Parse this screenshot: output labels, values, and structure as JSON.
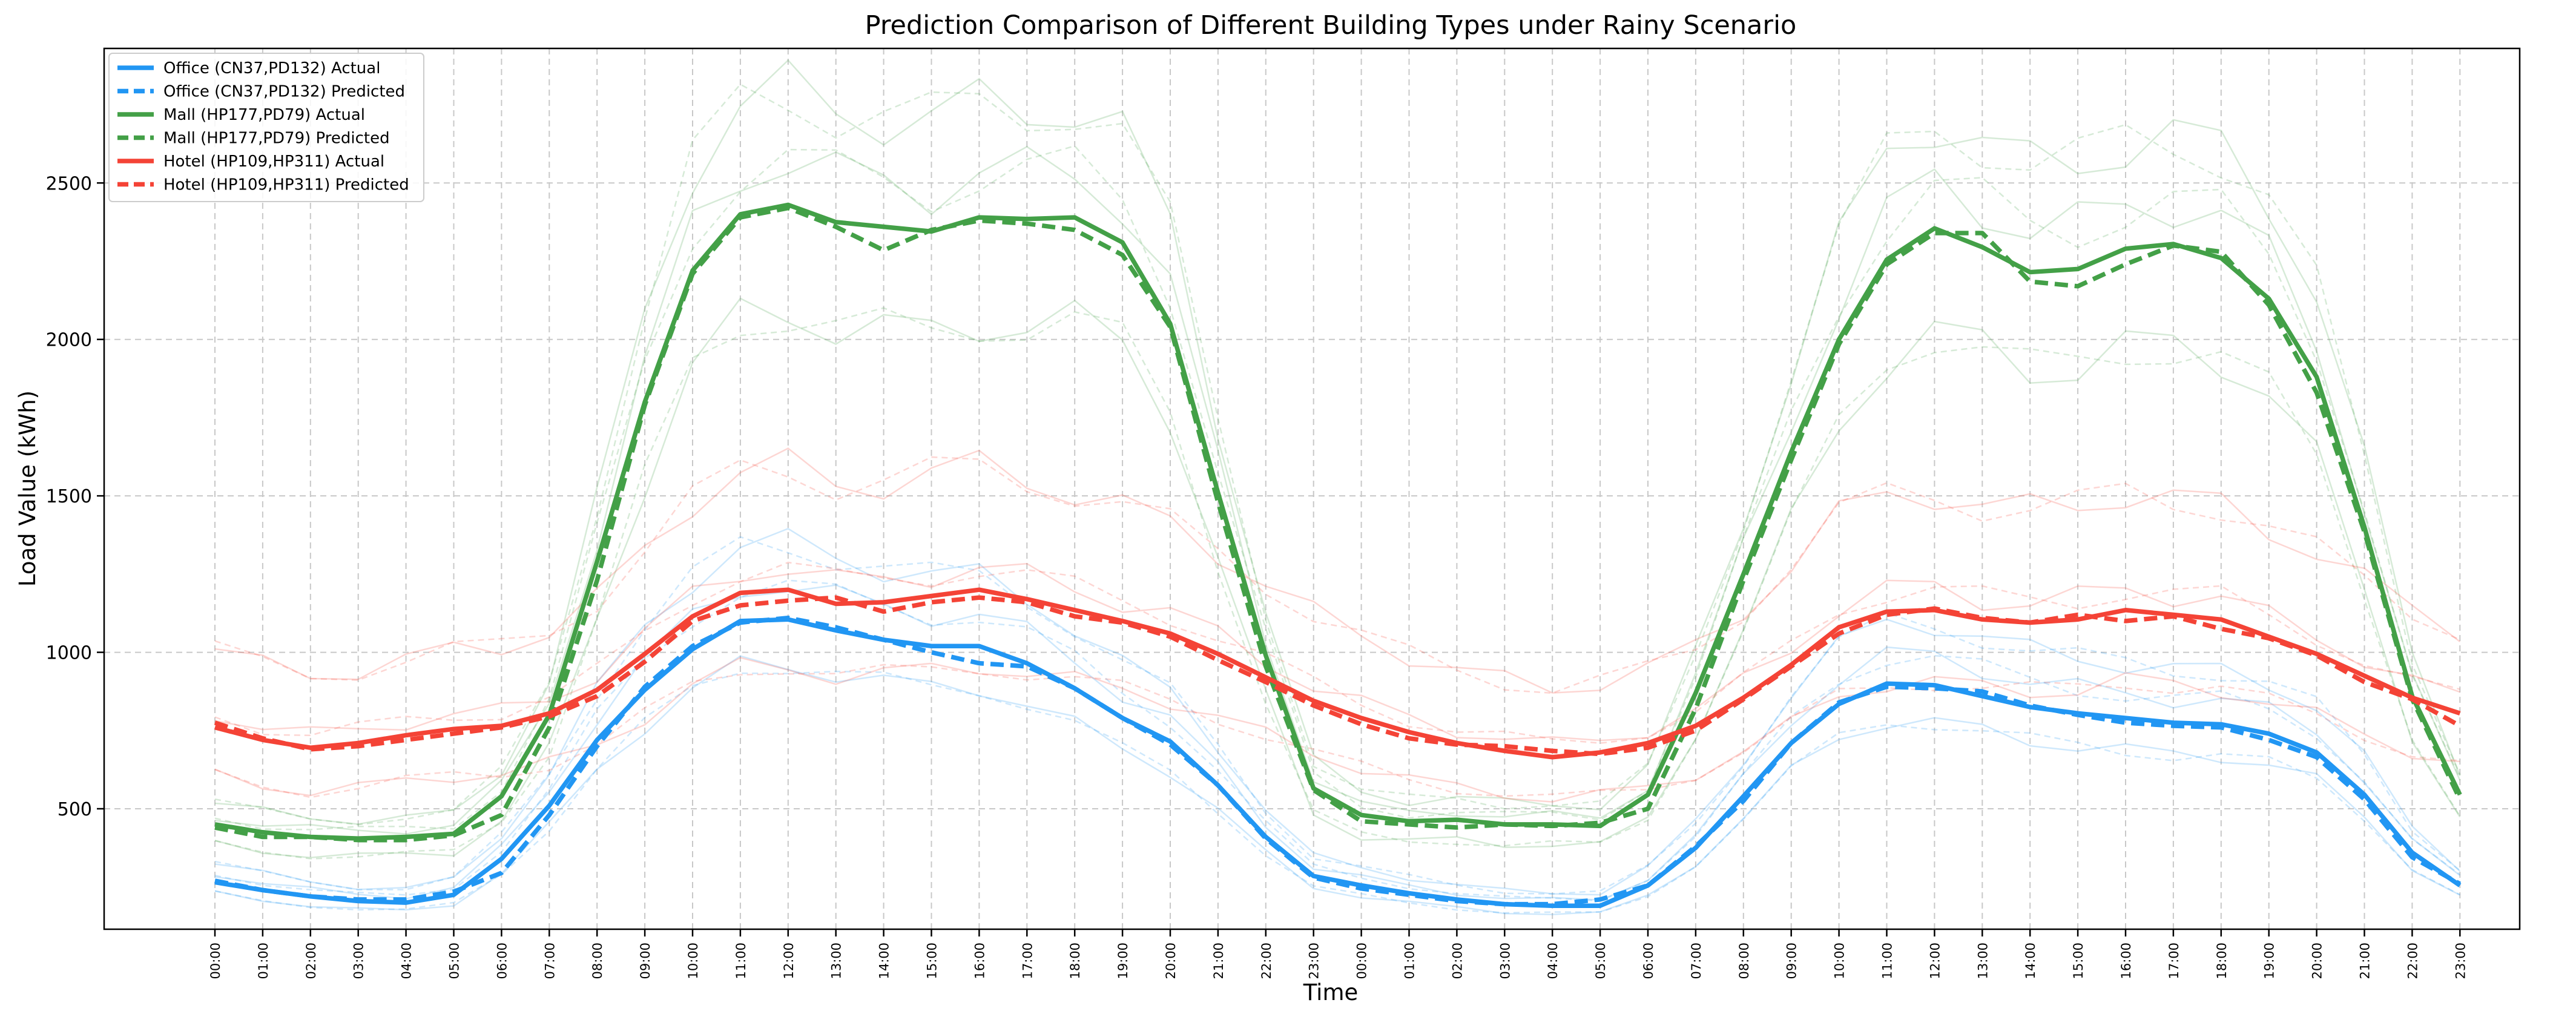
{
  "chart_data": {
    "type": "line",
    "title": "Prediction Comparison of Different Building Types under Rainy Scenario",
    "xlabel": "Time",
    "ylabel": "Load Value (kWh)",
    "ylim": [
      115,
      2930
    ],
    "yticks": [
      500,
      1000,
      1500,
      2000,
      2500
    ],
    "grid": true,
    "legend_position": "top-left",
    "categories": [
      "00:00",
      "01:00",
      "02:00",
      "03:00",
      "04:00",
      "05:00",
      "06:00",
      "07:00",
      "08:00",
      "09:00",
      "10:00",
      "11:00",
      "12:00",
      "13:00",
      "14:00",
      "15:00",
      "16:00",
      "17:00",
      "18:00",
      "19:00",
      "20:00",
      "21:00",
      "22:00",
      "23:00",
      "00:00",
      "01:00",
      "02:00",
      "03:00",
      "04:00",
      "05:00",
      "06:00",
      "07:00",
      "08:00",
      "09:00",
      "10:00",
      "11:00",
      "12:00",
      "13:00",
      "14:00",
      "15:00",
      "16:00",
      "17:00",
      "18:00",
      "19:00",
      "20:00",
      "21:00",
      "22:00",
      "23:00"
    ],
    "series": [
      {
        "name": "Office (CN37,PD132) Actual",
        "color": "#2196F3",
        "style": "solid",
        "values": [
          265,
          240,
          220,
          205,
          200,
          225,
          340,
          510,
          720,
          880,
          1010,
          1100,
          1105,
          1070,
          1040,
          1020,
          1020,
          965,
          885,
          790,
          715,
          575,
          410,
          285,
          255,
          230,
          210,
          195,
          190,
          190,
          255,
          375,
          540,
          710,
          835,
          900,
          895,
          860,
          825,
          805,
          790,
          775,
          770,
          740,
          680,
          545,
          360,
          255
        ]
      },
      {
        "name": "Office (CN37,PD132) Predicted",
        "color": "#2196F3",
        "style": "dashed",
        "values": [
          270,
          240,
          220,
          210,
          210,
          235,
          295,
          480,
          700,
          890,
          1020,
          1095,
          1110,
          1080,
          1040,
          1000,
          965,
          955,
          885,
          790,
          705,
          575,
          405,
          280,
          245,
          225,
          205,
          195,
          195,
          210,
          255,
          380,
          525,
          710,
          840,
          890,
          885,
          875,
          830,
          800,
          775,
          765,
          760,
          720,
          665,
          530,
          345,
          260
        ]
      },
      {
        "name": "Mall (HP177,PD79) Actual",
        "color": "#43A047",
        "style": "solid",
        "values": [
          450,
          425,
          410,
          405,
          410,
          420,
          540,
          800,
          1290,
          1800,
          2220,
          2400,
          2430,
          2375,
          2360,
          2345,
          2390,
          2385,
          2390,
          2310,
          2050,
          1510,
          990,
          565,
          480,
          460,
          465,
          450,
          450,
          445,
          545,
          870,
          1250,
          1640,
          2000,
          2255,
          2355,
          2295,
          2215,
          2225,
          2290,
          2305,
          2260,
          2130,
          1880,
          1400,
          860,
          545
        ]
      },
      {
        "name": "Mall (HP177,PD79) Predicted",
        "color": "#43A047",
        "style": "dashed",
        "values": [
          440,
          410,
          410,
          400,
          400,
          415,
          480,
          760,
          1230,
          1790,
          2210,
          2390,
          2420,
          2360,
          2285,
          2350,
          2380,
          2370,
          2350,
          2270,
          2040,
          1480,
          955,
          560,
          460,
          450,
          440,
          450,
          445,
          455,
          500,
          820,
          1230,
          1615,
          1985,
          2240,
          2340,
          2340,
          2185,
          2170,
          2240,
          2300,
          2280,
          2110,
          1830,
          1385,
          850,
          530
        ]
      },
      {
        "name": "Hotel (HP109,HP311) Actual",
        "color": "#F44336",
        "style": "solid",
        "values": [
          760,
          720,
          695,
          710,
          735,
          755,
          765,
          805,
          880,
          995,
          1115,
          1190,
          1200,
          1155,
          1160,
          1180,
          1200,
          1170,
          1135,
          1100,
          1060,
          995,
          920,
          845,
          790,
          745,
          710,
          685,
          665,
          680,
          710,
          765,
          855,
          960,
          1080,
          1130,
          1135,
          1105,
          1095,
          1105,
          1135,
          1120,
          1105,
          1050,
          995,
          925,
          855,
          805
        ]
      },
      {
        "name": "Hotel (HP109,HP311) Predicted",
        "color": "#F44336",
        "style": "dashed",
        "values": [
          775,
          725,
          690,
          700,
          720,
          740,
          760,
          795,
          860,
          970,
          1100,
          1150,
          1165,
          1175,
          1130,
          1160,
          1175,
          1160,
          1115,
          1095,
          1050,
          975,
          905,
          830,
          770,
          725,
          705,
          700,
          685,
          675,
          695,
          750,
          850,
          955,
          1060,
          1120,
          1140,
          1110,
          1095,
          1120,
          1100,
          1115,
          1075,
          1045,
          990,
          905,
          850,
          765
        ]
      }
    ]
  }
}
